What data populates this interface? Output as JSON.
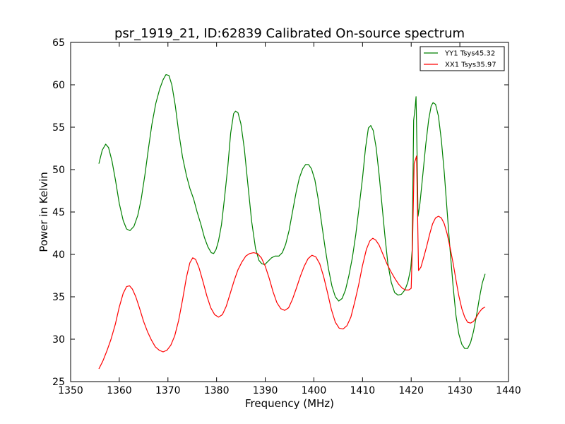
{
  "chart_data": {
    "type": "line",
    "title": "psr_1919_21, ID:62839 Calibrated On-source spectrum",
    "xlabel": "Frequency (MHz)",
    "ylabel": "Power in Kelvin",
    "xlim": [
      1350,
      1440
    ],
    "ylim": [
      25,
      65
    ],
    "xticks": [
      1350,
      1360,
      1370,
      1380,
      1390,
      1400,
      1410,
      1420,
      1430,
      1440
    ],
    "yticks": [
      25,
      30,
      35,
      40,
      45,
      50,
      55,
      60,
      65
    ],
    "grid": false,
    "legend_position": "top-right",
    "series": [
      {
        "name": "YY1 Tsys45.32",
        "color": "#008000",
        "points": [
          [
            1355.8,
            50.7
          ],
          [
            1356.5,
            52.3
          ],
          [
            1357.2,
            53.0
          ],
          [
            1357.8,
            52.6
          ],
          [
            1358.5,
            51.0
          ],
          [
            1359.2,
            48.8
          ],
          [
            1360.0,
            46.0
          ],
          [
            1360.8,
            44.0
          ],
          [
            1361.5,
            43.0
          ],
          [
            1362.2,
            42.8
          ],
          [
            1363.0,
            43.3
          ],
          [
            1363.8,
            44.6
          ],
          [
            1364.5,
            46.5
          ],
          [
            1365.3,
            49.5
          ],
          [
            1366.0,
            52.5
          ],
          [
            1366.7,
            55.3
          ],
          [
            1367.5,
            57.8
          ],
          [
            1368.3,
            59.5
          ],
          [
            1369.0,
            60.6
          ],
          [
            1369.6,
            61.2
          ],
          [
            1370.2,
            61.1
          ],
          [
            1370.8,
            60.0
          ],
          [
            1371.5,
            57.6
          ],
          [
            1372.2,
            54.5
          ],
          [
            1373.0,
            51.5
          ],
          [
            1373.8,
            49.3
          ],
          [
            1374.5,
            47.8
          ],
          [
            1375.3,
            46.5
          ],
          [
            1376.0,
            45.0
          ],
          [
            1376.8,
            43.5
          ],
          [
            1377.5,
            42.0
          ],
          [
            1378.2,
            40.9
          ],
          [
            1378.9,
            40.2
          ],
          [
            1379.4,
            40.1
          ],
          [
            1379.9,
            40.6
          ],
          [
            1380.4,
            41.6
          ],
          [
            1381.0,
            43.5
          ],
          [
            1381.6,
            46.5
          ],
          [
            1382.3,
            50.3
          ],
          [
            1382.9,
            54.3
          ],
          [
            1383.5,
            56.6
          ],
          [
            1383.9,
            56.9
          ],
          [
            1384.4,
            56.7
          ],
          [
            1385.0,
            55.4
          ],
          [
            1385.7,
            52.5
          ],
          [
            1386.4,
            48.4
          ],
          [
            1387.2,
            43.9
          ],
          [
            1388.0,
            40.7
          ],
          [
            1388.7,
            39.3
          ],
          [
            1389.3,
            38.9
          ],
          [
            1389.9,
            38.8
          ],
          [
            1390.6,
            39.2
          ],
          [
            1391.3,
            39.6
          ],
          [
            1392.0,
            39.8
          ],
          [
            1392.8,
            39.8
          ],
          [
            1393.5,
            40.2
          ],
          [
            1394.2,
            41.2
          ],
          [
            1394.9,
            42.8
          ],
          [
            1395.6,
            45.0
          ],
          [
            1396.3,
            47.2
          ],
          [
            1397.0,
            49.0
          ],
          [
            1397.7,
            50.1
          ],
          [
            1398.3,
            50.6
          ],
          [
            1398.9,
            50.6
          ],
          [
            1399.5,
            50.1
          ],
          [
            1400.2,
            48.8
          ],
          [
            1400.9,
            46.5
          ],
          [
            1401.6,
            43.6
          ],
          [
            1402.3,
            40.8
          ],
          [
            1403.0,
            38.3
          ],
          [
            1403.7,
            36.3
          ],
          [
            1404.4,
            35.0
          ],
          [
            1405.1,
            34.5
          ],
          [
            1405.8,
            34.8
          ],
          [
            1406.5,
            35.8
          ],
          [
            1407.2,
            37.5
          ],
          [
            1407.9,
            39.6
          ],
          [
            1408.6,
            42.3
          ],
          [
            1409.3,
            45.6
          ],
          [
            1410.0,
            49.0
          ],
          [
            1410.6,
            52.5
          ],
          [
            1411.2,
            54.9
          ],
          [
            1411.7,
            55.2
          ],
          [
            1412.2,
            54.6
          ],
          [
            1412.8,
            52.6
          ],
          [
            1413.4,
            49.4
          ],
          [
            1414.0,
            45.8
          ],
          [
            1414.6,
            42.2
          ],
          [
            1415.2,
            38.9
          ],
          [
            1415.9,
            36.7
          ],
          [
            1416.6,
            35.5
          ],
          [
            1417.3,
            35.2
          ],
          [
            1418.0,
            35.3
          ],
          [
            1418.7,
            35.8
          ],
          [
            1419.3,
            36.7
          ],
          [
            1419.9,
            38.3
          ],
          [
            1420.2,
            40.5
          ],
          [
            1420.5,
            55.8
          ],
          [
            1420.8,
            57.2
          ],
          [
            1421.0,
            58.6
          ],
          [
            1421.2,
            52.0
          ],
          [
            1421.4,
            44.5
          ],
          [
            1421.8,
            46.0
          ],
          [
            1422.4,
            49.5
          ],
          [
            1423.0,
            53.0
          ],
          [
            1423.6,
            55.9
          ],
          [
            1424.1,
            57.5
          ],
          [
            1424.5,
            57.9
          ],
          [
            1425.0,
            57.7
          ],
          [
            1425.6,
            56.3
          ],
          [
            1426.2,
            53.5
          ],
          [
            1426.8,
            49.6
          ],
          [
            1427.4,
            45.0
          ],
          [
            1428.0,
            40.5
          ],
          [
            1428.6,
            36.3
          ],
          [
            1429.2,
            32.8
          ],
          [
            1429.8,
            30.6
          ],
          [
            1430.4,
            29.4
          ],
          [
            1431.0,
            28.9
          ],
          [
            1431.6,
            28.9
          ],
          [
            1432.2,
            29.6
          ],
          [
            1432.8,
            30.9
          ],
          [
            1433.4,
            32.7
          ],
          [
            1434.0,
            34.8
          ],
          [
            1434.6,
            36.6
          ],
          [
            1435.2,
            37.7
          ]
        ]
      },
      {
        "name": "XX1 Tsys35.97",
        "color": "#ff0000",
        "points": [
          [
            1355.8,
            26.5
          ],
          [
            1356.6,
            27.4
          ],
          [
            1357.5,
            28.7
          ],
          [
            1358.3,
            30.0
          ],
          [
            1359.2,
            31.8
          ],
          [
            1360.0,
            33.8
          ],
          [
            1360.8,
            35.4
          ],
          [
            1361.5,
            36.2
          ],
          [
            1362.1,
            36.3
          ],
          [
            1362.7,
            35.9
          ],
          [
            1363.4,
            35.0
          ],
          [
            1364.2,
            33.6
          ],
          [
            1365.0,
            32.1
          ],
          [
            1365.8,
            30.9
          ],
          [
            1366.6,
            29.9
          ],
          [
            1367.4,
            29.1
          ],
          [
            1368.2,
            28.7
          ],
          [
            1369.0,
            28.5
          ],
          [
            1369.8,
            28.7
          ],
          [
            1370.6,
            29.3
          ],
          [
            1371.4,
            30.4
          ],
          [
            1372.2,
            32.2
          ],
          [
            1373.0,
            34.6
          ],
          [
            1373.8,
            37.3
          ],
          [
            1374.5,
            39.0
          ],
          [
            1375.1,
            39.6
          ],
          [
            1375.7,
            39.4
          ],
          [
            1376.4,
            38.4
          ],
          [
            1377.2,
            36.8
          ],
          [
            1378.0,
            35.1
          ],
          [
            1378.8,
            33.7
          ],
          [
            1379.6,
            32.9
          ],
          [
            1380.4,
            32.6
          ],
          [
            1381.2,
            32.9
          ],
          [
            1382.0,
            33.9
          ],
          [
            1382.8,
            35.4
          ],
          [
            1383.6,
            36.9
          ],
          [
            1384.4,
            38.2
          ],
          [
            1385.2,
            39.1
          ],
          [
            1386.0,
            39.8
          ],
          [
            1386.8,
            40.1
          ],
          [
            1387.6,
            40.2
          ],
          [
            1388.4,
            40.1
          ],
          [
            1389.2,
            39.6
          ],
          [
            1390.0,
            38.6
          ],
          [
            1390.8,
            37.2
          ],
          [
            1391.6,
            35.6
          ],
          [
            1392.4,
            34.3
          ],
          [
            1393.2,
            33.6
          ],
          [
            1394.0,
            33.4
          ],
          [
            1394.8,
            33.7
          ],
          [
            1395.6,
            34.7
          ],
          [
            1396.4,
            36.0
          ],
          [
            1397.2,
            37.4
          ],
          [
            1398.0,
            38.6
          ],
          [
            1398.8,
            39.5
          ],
          [
            1399.6,
            39.9
          ],
          [
            1400.4,
            39.7
          ],
          [
            1401.2,
            38.9
          ],
          [
            1402.0,
            37.4
          ],
          [
            1402.8,
            35.5
          ],
          [
            1403.6,
            33.5
          ],
          [
            1404.4,
            32.0
          ],
          [
            1405.2,
            31.3
          ],
          [
            1406.0,
            31.2
          ],
          [
            1406.8,
            31.6
          ],
          [
            1407.6,
            32.6
          ],
          [
            1408.4,
            34.4
          ],
          [
            1409.2,
            36.4
          ],
          [
            1410.0,
            38.7
          ],
          [
            1410.8,
            40.6
          ],
          [
            1411.5,
            41.6
          ],
          [
            1412.1,
            41.9
          ],
          [
            1412.7,
            41.7
          ],
          [
            1413.4,
            41.1
          ],
          [
            1414.2,
            40.0
          ],
          [
            1415.0,
            38.9
          ],
          [
            1415.8,
            38.0
          ],
          [
            1416.6,
            37.2
          ],
          [
            1417.4,
            36.5
          ],
          [
            1418.2,
            36.0
          ],
          [
            1418.9,
            35.8
          ],
          [
            1419.5,
            35.8
          ],
          [
            1420.0,
            36.0
          ],
          [
            1420.3,
            42.0
          ],
          [
            1420.6,
            50.7
          ],
          [
            1420.9,
            51.2
          ],
          [
            1421.1,
            51.6
          ],
          [
            1421.3,
            45.0
          ],
          [
            1421.5,
            38.1
          ],
          [
            1422.0,
            38.5
          ],
          [
            1422.6,
            39.7
          ],
          [
            1423.2,
            41.0
          ],
          [
            1423.8,
            42.4
          ],
          [
            1424.4,
            43.6
          ],
          [
            1425.0,
            44.3
          ],
          [
            1425.6,
            44.5
          ],
          [
            1426.2,
            44.3
          ],
          [
            1426.8,
            43.6
          ],
          [
            1427.4,
            42.4
          ],
          [
            1428.0,
            40.8
          ],
          [
            1428.6,
            39.0
          ],
          [
            1429.2,
            37.0
          ],
          [
            1429.8,
            35.1
          ],
          [
            1430.4,
            33.6
          ],
          [
            1431.0,
            32.6
          ],
          [
            1431.6,
            32.0
          ],
          [
            1432.2,
            31.9
          ],
          [
            1432.8,
            32.1
          ],
          [
            1433.4,
            32.6
          ],
          [
            1434.0,
            33.2
          ],
          [
            1434.6,
            33.6
          ],
          [
            1435.2,
            33.8
          ]
        ]
      }
    ]
  }
}
